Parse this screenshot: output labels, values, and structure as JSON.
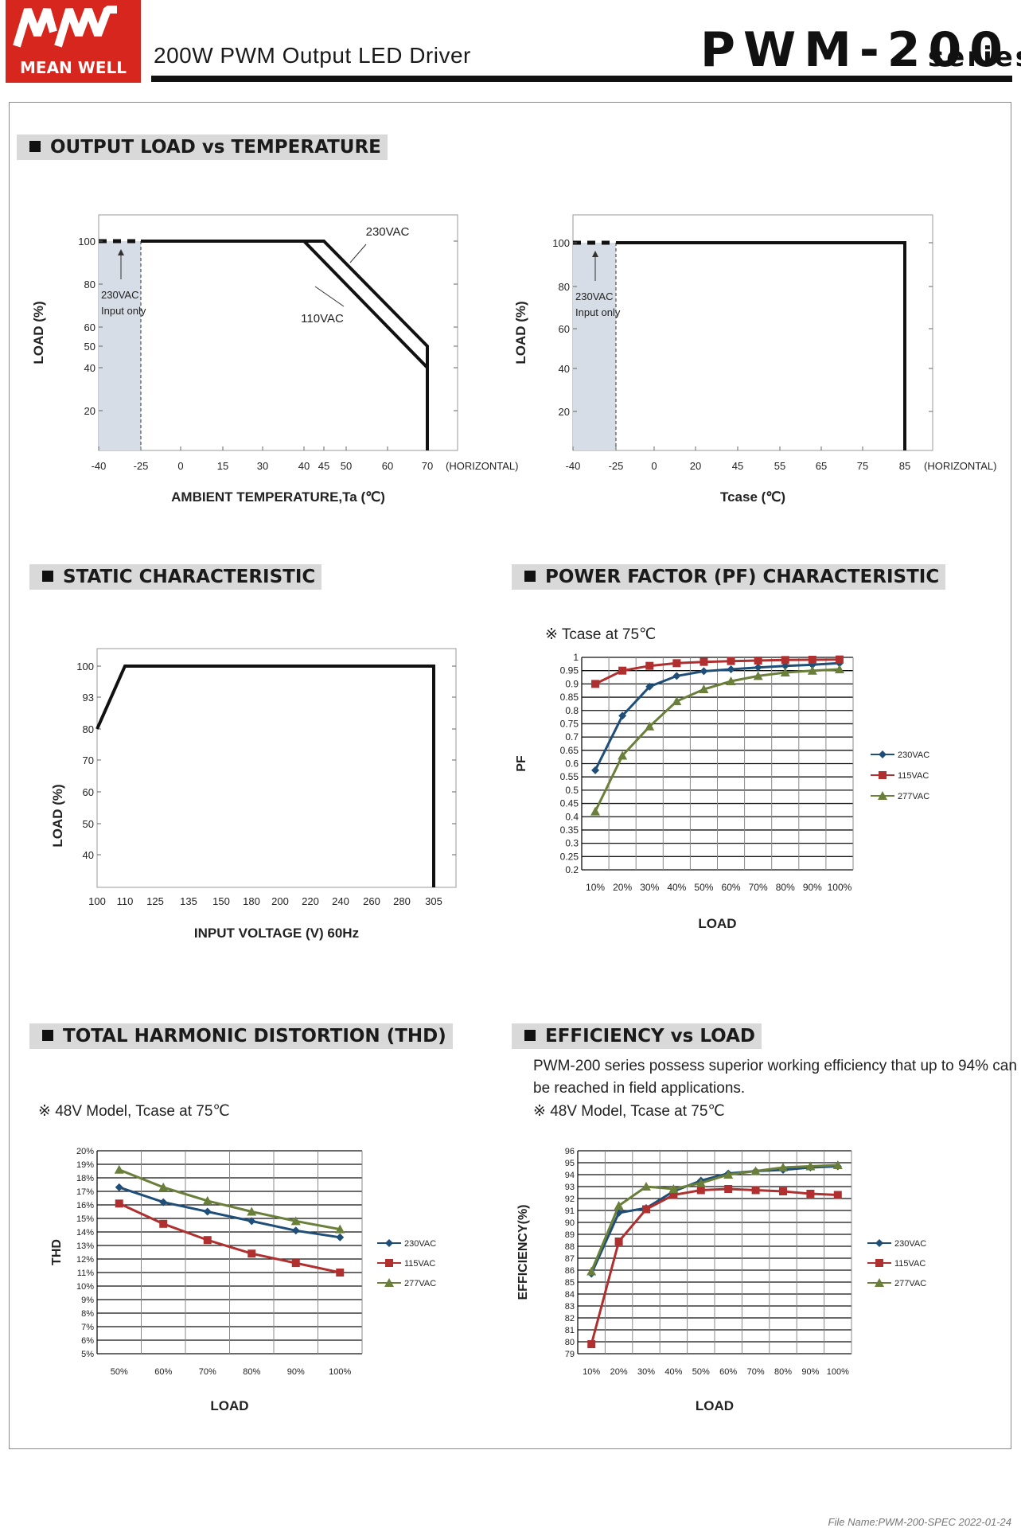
{
  "header": {
    "brand_logo": "MEAN WELL",
    "subtitle": "200W PWM Output LED Driver",
    "title": "PWM-200",
    "series": "series"
  },
  "sections": {
    "derating": "OUTPUT LOAD vs TEMPERATURE",
    "static": "STATIC CHARACTERISTIC",
    "pf": "POWER FACTOR (PF) CHARACTERISTIC",
    "thd": "TOTAL HARMONIC DISTORTION (THD)",
    "eff": "EFFICIENCY vs LOAD"
  },
  "notes": {
    "pf": "※ Tcase at 75℃",
    "thd": "※ 48V Model, Tcase at 75℃",
    "eff_para": "PWM-200 series possess superior working efficiency that up to 94% can be reached in field applications.",
    "eff": "※ 48V Model, Tcase at 75℃"
  },
  "footer": {
    "filename": "File Name:PWM-200-SPEC   2022-01-24"
  },
  "colors": {
    "c230": "#1f4e79",
    "c115": "#b03030",
    "c277": "#6a7f3a",
    "shade": "#d6dde6"
  },
  "chart_data": [
    {
      "id": "derating_ambient",
      "type": "line",
      "xlabel": "AMBIENT TEMPERATURE,Ta (℃)",
      "ylabel": "LOAD (%)",
      "x_ticks": [
        "-40",
        "-25",
        "0",
        "15",
        "30",
        "40",
        "45",
        "50",
        "60",
        "70"
      ],
      "x_suffix": "(HORIZONTAL)",
      "y_ticks": [
        "100",
        "80",
        "60",
        "50",
        "40",
        "20"
      ],
      "shaded_note": [
        "230VAC",
        "Input only"
      ],
      "series": [
        {
          "name": "230VAC",
          "points": [
            [
              "-25",
              100
            ],
            [
              "45",
              100
            ],
            [
              "70",
              50
            ],
            [
              "70",
              0
            ]
          ]
        },
        {
          "name": "110VAC",
          "points": [
            [
              "-25",
              100
            ],
            [
              "40",
              100
            ],
            [
              "70",
              40
            ],
            [
              "70",
              0
            ]
          ]
        }
      ]
    },
    {
      "id": "derating_tcase",
      "type": "line",
      "xlabel": "Tcase (℃)",
      "ylabel": "LOAD (%)",
      "x_ticks": [
        "-40",
        "-25",
        "0",
        "20",
        "45",
        "55",
        "65",
        "75",
        "85"
      ],
      "x_suffix": "(HORIZONTAL)",
      "y_ticks": [
        "100",
        "80",
        "60",
        "40",
        "20"
      ],
      "shaded_note": [
        "230VAC",
        "Input only"
      ],
      "series": [
        {
          "name": "load",
          "points": [
            [
              "-25",
              100
            ],
            [
              "85",
              100
            ],
            [
              "85",
              0
            ]
          ]
        }
      ]
    },
    {
      "id": "static",
      "type": "line",
      "xlabel": "INPUT VOLTAGE (V) 60Hz",
      "ylabel": "LOAD (%)",
      "x_ticks": [
        "100",
        "110",
        "125",
        "135",
        "150",
        "180",
        "200",
        "220",
        "240",
        "260",
        "280",
        "305"
      ],
      "y_ticks": [
        "100",
        "93",
        "80",
        "70",
        "60",
        "50",
        "40"
      ],
      "series": [
        {
          "name": "load",
          "points": [
            [
              "100",
              "80"
            ],
            [
              "110",
              "100"
            ],
            [
              "305",
              "100"
            ],
            [
              "305",
              "0"
            ]
          ]
        }
      ]
    },
    {
      "id": "pf",
      "type": "line",
      "xlabel": "LOAD",
      "ylabel": "PF",
      "categories": [
        "10%",
        "20%",
        "30%",
        "40%",
        "50%",
        "60%",
        "70%",
        "80%",
        "90%",
        "100%"
      ],
      "y_ticks": [
        "1",
        "0.95",
        "0.9",
        "0.85",
        "0.8",
        "0.75",
        "0.7",
        "0.65",
        "0.6",
        "0.55",
        "0.5",
        "0.45",
        "0.4",
        "0.35",
        "0.3",
        "0.25",
        "0.2"
      ],
      "ylim": [
        0.2,
        1.0
      ],
      "series": [
        {
          "name": "230VAC",
          "values": [
            0.575,
            0.78,
            0.89,
            0.93,
            0.948,
            0.955,
            0.962,
            0.968,
            0.972,
            0.978
          ]
        },
        {
          "name": "115VAC",
          "values": [
            0.9,
            0.95,
            0.968,
            0.978,
            0.983,
            0.986,
            0.988,
            0.99,
            0.991,
            0.992
          ]
        },
        {
          "name": "277VAC",
          "values": [
            0.42,
            0.63,
            0.74,
            0.835,
            0.88,
            0.91,
            0.93,
            0.943,
            0.95,
            0.955
          ]
        }
      ]
    },
    {
      "id": "thd",
      "type": "line",
      "xlabel": "LOAD",
      "ylabel": "THD",
      "categories": [
        "50%",
        "60%",
        "70%",
        "80%",
        "90%",
        "100%"
      ],
      "y_ticks": [
        "20%",
        "19%",
        "18%",
        "17%",
        "16%",
        "15%",
        "14%",
        "13%",
        "12%",
        "11%",
        "10%",
        "9%",
        "8%",
        "7%",
        "6%",
        "5%"
      ],
      "ylim": [
        5,
        20
      ],
      "series": [
        {
          "name": "230VAC",
          "values": [
            17.3,
            16.2,
            15.5,
            14.8,
            14.1,
            13.6
          ]
        },
        {
          "name": "115VAC",
          "values": [
            16.1,
            14.6,
            13.4,
            12.4,
            11.7,
            11.0
          ]
        },
        {
          "name": "277VAC",
          "values": [
            18.6,
            17.3,
            16.3,
            15.5,
            14.8,
            14.2
          ]
        }
      ]
    },
    {
      "id": "efficiency",
      "type": "line",
      "xlabel": "LOAD",
      "ylabel": "EFFICIENCY(%)",
      "categories": [
        "10%",
        "20%",
        "30%",
        "40%",
        "50%",
        "60%",
        "70%",
        "80%",
        "90%",
        "100%"
      ],
      "y_ticks": [
        "96",
        "95",
        "94",
        "93",
        "92",
        "91",
        "90",
        "89",
        "88",
        "87",
        "86",
        "85",
        "84",
        "83",
        "82",
        "81",
        "80",
        "79"
      ],
      "ylim": [
        79,
        96
      ],
      "series": [
        {
          "name": "230VAC",
          "values": [
            85.7,
            90.8,
            91.2,
            92.6,
            93.5,
            94.1,
            94.3,
            94.4,
            94.6,
            94.7
          ]
        },
        {
          "name": "115VAC",
          "values": [
            79.8,
            88.4,
            91.1,
            92.3,
            92.7,
            92.8,
            92.7,
            92.6,
            92.4,
            92.3
          ]
        },
        {
          "name": "277VAC",
          "values": [
            85.9,
            91.4,
            93.0,
            92.8,
            93.3,
            94.0,
            94.3,
            94.6,
            94.7,
            94.8
          ]
        }
      ]
    }
  ]
}
